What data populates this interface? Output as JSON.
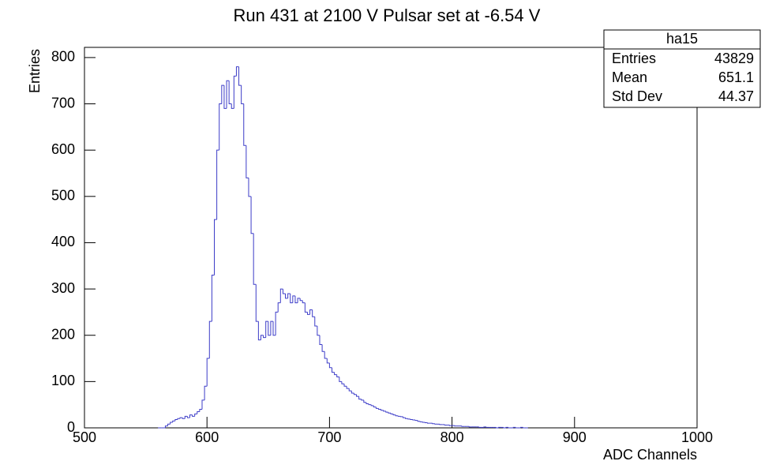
{
  "chart_data": {
    "type": "histogram",
    "title": "Run 431 at 2100 V Pulsar set at -6.54 V",
    "x_label": "ADC Channels",
    "y_label": "Entries",
    "bins": [
      560,
      562,
      564,
      566,
      568,
      570,
      572,
      574,
      576,
      578,
      580,
      582,
      584,
      586,
      588,
      590,
      592,
      594,
      596,
      598,
      600,
      602,
      604,
      606,
      608,
      610,
      612,
      614,
      616,
      618,
      620,
      622,
      624,
      626,
      628,
      630,
      632,
      634,
      636,
      638,
      640,
      642,
      644,
      646,
      648,
      650,
      652,
      654,
      656,
      658,
      660,
      662,
      664,
      666,
      668,
      670,
      672,
      674,
      676,
      678,
      680,
      682,
      684,
      686,
      688,
      690,
      692,
      694,
      696,
      698,
      700,
      702,
      704,
      706,
      708,
      710,
      712,
      714,
      716,
      718,
      720,
      722,
      724,
      726,
      728,
      730,
      732,
      734,
      736,
      738,
      740,
      742,
      744,
      746,
      748,
      750,
      752,
      754,
      756,
      758,
      760,
      762,
      764,
      766,
      768,
      770,
      772,
      774,
      776,
      778,
      780,
      782,
      784,
      786,
      788,
      790,
      792,
      794,
      796,
      798,
      800,
      802,
      804,
      806,
      808,
      810,
      812,
      814,
      816,
      818,
      820,
      822,
      824,
      826,
      828,
      830,
      832,
      834,
      836,
      838,
      840,
      842,
      844,
      846,
      848,
      850,
      852,
      854,
      856,
      858,
      860,
      862
    ],
    "values": [
      0,
      0,
      0,
      4,
      8,
      12,
      15,
      18,
      20,
      22,
      20,
      25,
      22,
      28,
      25,
      30,
      35,
      40,
      60,
      90,
      150,
      230,
      330,
      450,
      600,
      700,
      740,
      690,
      750,
      700,
      690,
      760,
      780,
      740,
      700,
      610,
      540,
      500,
      420,
      310,
      230,
      190,
      200,
      195,
      230,
      200,
      230,
      200,
      250,
      270,
      300,
      290,
      280,
      290,
      270,
      285,
      270,
      280,
      275,
      270,
      250,
      245,
      255,
      240,
      220,
      200,
      180,
      165,
      150,
      140,
      130,
      120,
      115,
      110,
      100,
      95,
      90,
      85,
      80,
      75,
      72,
      68,
      62,
      60,
      55,
      52,
      50,
      48,
      45,
      42,
      40,
      38,
      36,
      34,
      32,
      30,
      28,
      26,
      25,
      24,
      22,
      20,
      19,
      18,
      17,
      16,
      14,
      13,
      12,
      11,
      10,
      10,
      9,
      8,
      8,
      7,
      7,
      6,
      6,
      5,
      5,
      4,
      4,
      4,
      3,
      3,
      3,
      2,
      2,
      2,
      2,
      1,
      1,
      2,
      1,
      1,
      1,
      1,
      0,
      1,
      1,
      0,
      1,
      0,
      0,
      1,
      0,
      0,
      1,
      0,
      0
    ],
    "color": "#3c3cc8",
    "xlim": [
      500,
      1000
    ],
    "xticks": [
      500,
      600,
      700,
      800,
      900,
      1000
    ],
    "ylim": [
      0,
      822
    ],
    "yticks": [
      0,
      100,
      200,
      300,
      400,
      500,
      600,
      700,
      800
    ],
    "stats": {
      "title": "ha15",
      "rows": [
        [
          "Entries",
          "43829"
        ],
        [
          "Mean",
          "651.1"
        ],
        [
          "Std Dev",
          "44.37"
        ]
      ]
    }
  }
}
